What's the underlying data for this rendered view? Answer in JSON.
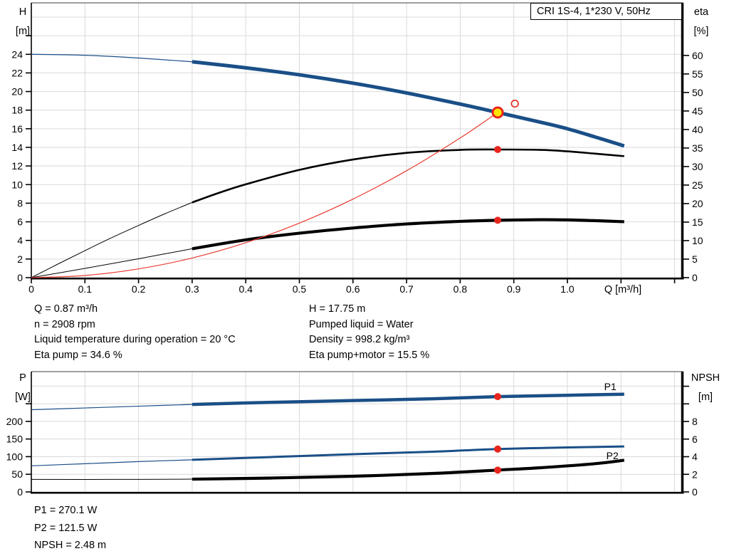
{
  "title_box": "CRI 1S-4, 1*230 V, 50Hz",
  "colors": {
    "blue": "#1a4f87",
    "black": "#000000",
    "red": "#ea3a30",
    "marker_red": "#e8251d",
    "marker_yellow": "#ffe400",
    "grid": "#d9d9d9",
    "axis": "#000000",
    "top_border": "#666666"
  },
  "axis_corner_labels": {
    "h": "H",
    "h_unit": "[m]",
    "eta": "eta",
    "eta_unit": "[%]",
    "p": "P",
    "p_unit": "[W]",
    "npsh": "NPSH",
    "npsh_unit": "[m]"
  },
  "info_block": {
    "left": [
      "Q = 0.87 m³/h",
      "n = 2908 rpm",
      "Liquid temperature during operation = 20 °C",
      "Eta pump = 34.6 %"
    ],
    "right": [
      "H = 17.75 m",
      "Pumped liquid = Water",
      "Density = 998.2 kg/m³",
      "Eta pump+motor = 15.5 %"
    ]
  },
  "bottom_info": [
    "P1 = 270.1 W",
    "P2 = 121.5 W",
    "NPSH = 2.48 m"
  ],
  "chart_data": [
    {
      "type": "line",
      "title": "CRI 1S-4, 1*230 V, 50Hz",
      "x_axis": {
        "label": "Q [m³/h]",
        "min": 0,
        "max": 1.2125,
        "ticks": [
          0,
          0.1,
          0.2,
          0.3,
          0.4,
          0.5,
          0.6,
          0.7,
          0.8,
          0.9,
          1.0,
          1.1,
          1.2
        ],
        "tick_labels": [
          "0",
          "0.1",
          "0.2",
          "0.3",
          "0.4",
          "0.5",
          "0.6",
          "0.7",
          "0.8",
          "0.9",
          "1.0"
        ],
        "grid": [
          0.1,
          0.2,
          0.3,
          0.4,
          0.5,
          0.6,
          0.7,
          0.8,
          0.9,
          1.0,
          1.1,
          1.2
        ],
        "show_tick_marks": true
      },
      "y_left": {
        "label": "H [m]",
        "min": 0,
        "max": 29.53,
        "ticks": [
          0,
          2,
          4,
          6,
          8,
          10,
          12,
          14,
          16,
          18,
          20,
          22,
          24,
          26
        ],
        "tick_labels": [
          "0",
          "2",
          "4",
          "6",
          "8",
          "10",
          "12",
          "14",
          "16",
          "18",
          "20",
          "22",
          "24"
        ],
        "grid": [
          2,
          4,
          6,
          8,
          10,
          12,
          14,
          16,
          18,
          20,
          22,
          24,
          26,
          28
        ]
      },
      "y_right": {
        "label": "eta [%]",
        "min": 0,
        "max": 74.2,
        "ticks": [
          0,
          5,
          10,
          15,
          20,
          25,
          30,
          35,
          40,
          45,
          50,
          55,
          60
        ],
        "tick_labels": [
          "0",
          "5",
          "10",
          "15",
          "20",
          "25",
          "30",
          "35",
          "40",
          "45",
          "50",
          "55",
          "60"
        ]
      },
      "series": [
        {
          "name": "head-curve-thin",
          "axis": "left",
          "color": "blue",
          "width": 1.2,
          "points": [
            [
              0,
              24
            ],
            [
              0.1,
              23.9
            ],
            [
              0.2,
              23.6
            ],
            [
              0.3,
              23.2
            ]
          ]
        },
        {
          "name": "head-curve",
          "axis": "left",
          "color": "blue",
          "width": 5,
          "points": [
            [
              0.3,
              23.2
            ],
            [
              0.4,
              22.55
            ],
            [
              0.5,
              21.8
            ],
            [
              0.6,
              20.9
            ],
            [
              0.7,
              19.85
            ],
            [
              0.8,
              18.65
            ],
            [
              0.87,
              17.75
            ],
            [
              0.95,
              16.7
            ],
            [
              1.0,
              16.0
            ],
            [
              1.05,
              15.15
            ],
            [
              1.106,
              14.15
            ]
          ]
        },
        {
          "name": "eta-pump-curve-thin",
          "axis": "right",
          "color": "black",
          "width": 1,
          "points": [
            [
              0,
              0
            ],
            [
              0.05,
              3.7
            ],
            [
              0.1,
              7.3
            ],
            [
              0.15,
              10.8
            ],
            [
              0.2,
              14.1
            ],
            [
              0.25,
              17.3
            ],
            [
              0.3,
              20.3
            ]
          ]
        },
        {
          "name": "eta-pump-curve",
          "axis": "right",
          "color": "black",
          "width": 2.6,
          "points": [
            [
              0.3,
              20.3
            ],
            [
              0.35,
              22.9
            ],
            [
              0.4,
              25.2
            ],
            [
              0.5,
              29.1
            ],
            [
              0.6,
              31.9
            ],
            [
              0.7,
              33.7
            ],
            [
              0.8,
              34.5
            ],
            [
              0.87,
              34.6
            ],
            [
              0.95,
              34.5
            ],
            [
              1.0,
              34.1
            ],
            [
              1.05,
              33.5
            ],
            [
              1.106,
              32.8
            ]
          ]
        },
        {
          "name": "eta-pump-motor-curve-thin",
          "axis": "right",
          "color": "black",
          "width": 1,
          "points": [
            [
              0,
              0
            ],
            [
              0.1,
              2.5
            ],
            [
              0.2,
              5.1
            ],
            [
              0.3,
              7.8
            ]
          ]
        },
        {
          "name": "eta-pump-motor-curve",
          "axis": "right",
          "color": "black",
          "width": 4.2,
          "points": [
            [
              0.3,
              7.8
            ],
            [
              0.4,
              10.2
            ],
            [
              0.5,
              12.0
            ],
            [
              0.6,
              13.4
            ],
            [
              0.7,
              14.5
            ],
            [
              0.8,
              15.2
            ],
            [
              0.87,
              15.5
            ],
            [
              0.95,
              15.65
            ],
            [
              1.0,
              15.6
            ],
            [
              1.05,
              15.4
            ],
            [
              1.106,
              15.1
            ]
          ]
        },
        {
          "name": "system-curve",
          "axis": "left",
          "color": "red",
          "width": 1.2,
          "points": [
            [
              0,
              0
            ],
            [
              0.1,
              0.23
            ],
            [
              0.2,
              0.94
            ],
            [
              0.3,
              2.11
            ],
            [
              0.4,
              3.75
            ],
            [
              0.5,
              5.86
            ],
            [
              0.6,
              8.44
            ],
            [
              0.7,
              11.49
            ],
            [
              0.8,
              15.01
            ],
            [
              0.87,
              17.75
            ]
          ]
        }
      ],
      "markers": [
        {
          "name": "eta-pump-operating-dot",
          "axis": "right",
          "q": 0.87,
          "v": 34.6,
          "style": "dot"
        },
        {
          "name": "eta-pump-motor-operating-dot",
          "axis": "right",
          "q": 0.87,
          "v": 15.5,
          "style": "dot"
        },
        {
          "name": "alternative-duty-circle",
          "axis": "left",
          "q": 0.902,
          "v": 18.7,
          "style": "open"
        },
        {
          "name": "duty-point",
          "axis": "left",
          "q": 0.87,
          "v": 17.75,
          "style": "duty"
        }
      ],
      "labels": []
    },
    {
      "type": "line",
      "title": "",
      "x_axis": {
        "label": "",
        "min": 0,
        "max": 1.2125,
        "ticks": [],
        "tick_labels": [],
        "grid": [
          0.1,
          0.2,
          0.3,
          0.4,
          0.5,
          0.6,
          0.7,
          0.8,
          0.9,
          1.0,
          1.1,
          1.2
        ],
        "show_tick_marks": false
      },
      "y_left": {
        "label": "P [W]",
        "min": 0,
        "max": 341,
        "ticks": [
          0,
          50,
          100,
          150,
          200,
          250
        ],
        "tick_labels": [
          "0",
          "50",
          "100",
          "150",
          "200"
        ],
        "grid": [
          50,
          100,
          150,
          200,
          250,
          300
        ]
      },
      "y_right": {
        "label": "NPSH [m]",
        "min": 0,
        "max": 13.66,
        "ticks": [
          0,
          2,
          4,
          6,
          8,
          10,
          12
        ],
        "tick_labels": [
          "0",
          "2",
          "4",
          "6",
          "8"
        ]
      },
      "series": [
        {
          "name": "p1-curve-thin",
          "axis": "left",
          "color": "blue",
          "width": 1.2,
          "points": [
            [
              0,
              233
            ],
            [
              0.1,
              238
            ],
            [
              0.2,
              243
            ],
            [
              0.3,
              248
            ]
          ]
        },
        {
          "name": "p1-curve",
          "axis": "left",
          "color": "blue",
          "width": 4.5,
          "points": [
            [
              0.3,
              248
            ],
            [
              0.45,
              254
            ],
            [
              0.6,
              259
            ],
            [
              0.75,
              264
            ],
            [
              0.87,
              270.1
            ],
            [
              1.0,
              274
            ],
            [
              1.106,
              277
            ]
          ]
        },
        {
          "name": "p2-curve-thin",
          "axis": "left",
          "color": "blue",
          "width": 1.2,
          "points": [
            [
              0,
              74
            ],
            [
              0.1,
              80
            ],
            [
              0.2,
              86
            ],
            [
              0.3,
              91
            ]
          ]
        },
        {
          "name": "p2-curve",
          "axis": "left",
          "color": "blue",
          "width": 3,
          "points": [
            [
              0.3,
              91
            ],
            [
              0.45,
              99
            ],
            [
              0.6,
              107
            ],
            [
              0.75,
              114
            ],
            [
              0.87,
              121.5
            ],
            [
              1.0,
              126
            ],
            [
              1.106,
              129
            ]
          ]
        },
        {
          "name": "npsh-curve-thin",
          "axis": "right",
          "color": "black",
          "width": 1,
          "points": [
            [
              0,
              1.42
            ],
            [
              0.15,
              1.42
            ],
            [
              0.3,
              1.45
            ]
          ]
        },
        {
          "name": "npsh-curve",
          "axis": "right",
          "color": "black",
          "width": 4.2,
          "points": [
            [
              0.3,
              1.45
            ],
            [
              0.45,
              1.58
            ],
            [
              0.6,
              1.78
            ],
            [
              0.75,
              2.1
            ],
            [
              0.87,
              2.48
            ],
            [
              0.95,
              2.75
            ],
            [
              1.05,
              3.2
            ],
            [
              1.106,
              3.6
            ]
          ]
        }
      ],
      "markers": [
        {
          "name": "p1-operating-dot",
          "axis": "left",
          "q": 0.87,
          "v": 270.1,
          "style": "dot"
        },
        {
          "name": "p2-operating-dot",
          "axis": "left",
          "q": 0.87,
          "v": 121.5,
          "style": "dot"
        },
        {
          "name": "npsh-operating-dot",
          "axis": "right",
          "q": 0.87,
          "v": 2.48,
          "style": "dot"
        }
      ],
      "labels": [
        {
          "name": "p1-curve-label",
          "text": "P1",
          "axis": "left",
          "q": 1.08,
          "v": 299
        },
        {
          "name": "p2-curve-label",
          "text": "P2",
          "axis": "left",
          "q": 1.084,
          "v": 103
        }
      ]
    }
  ]
}
